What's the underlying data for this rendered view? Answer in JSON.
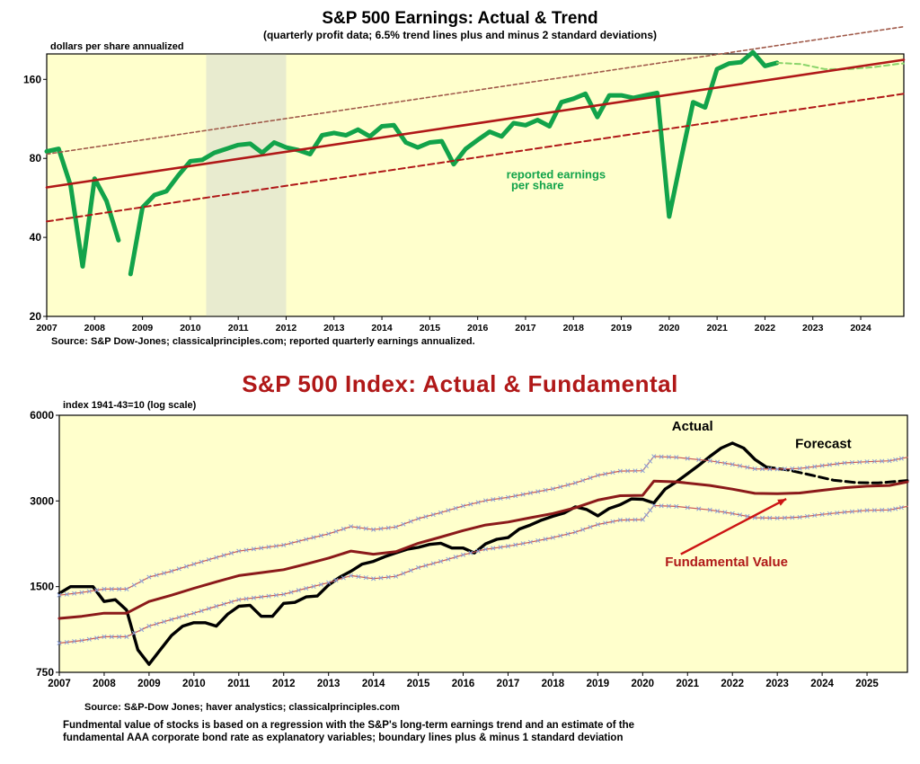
{
  "chart_data": [
    {
      "type": "line",
      "title": "S&P 500 Earnings: Actual & Trend",
      "subtitle": "(quarterly profit data; 6.5% trend lines plus and minus 2 standard deviations)",
      "ylabel": "dollars  per share annualized",
      "source": "Source: S&P Dow-Jones; classicalprinciples.com; reported quarterly earnings annualized.",
      "scale": "log",
      "xlim": [
        2007,
        2024.9
      ],
      "ylim": [
        20,
        200
      ],
      "yticks": [
        20,
        40,
        80,
        160
      ],
      "xticks": [
        "2007",
        "2008",
        "2009",
        "2010",
        "2011",
        "2012",
        "2013",
        "2014",
        "2015",
        "2016",
        "2017",
        "2018",
        "2019",
        "2020",
        "2021",
        "2022",
        "2023",
        "2024"
      ],
      "shaded_region": [
        2010.33,
        2012.0
      ],
      "grid": false,
      "annotations": [
        {
          "text": "reported earnings",
          "x": 2016.6,
          "y": 67
        },
        {
          "text": "per share",
          "x": 2016.7,
          "y": 61
        }
      ],
      "series": [
        {
          "name": "reported earnings per share",
          "color": "#12a34a",
          "x": [
            2007.0,
            2007.25,
            2007.5,
            2007.75,
            2008.0,
            2008.25,
            2008.5,
            2008.75
          ],
          "y": [
            85,
            87,
            63,
            31,
            67,
            55,
            39,
            null
          ]
        },
        {
          "color": "#12a34a",
          "x": [
            2008.75,
            2009.0,
            2009.25,
            2009.5,
            2009.75,
            2010.0,
            2010.25,
            2010.5,
            2010.75,
            2011.0,
            2011.25,
            2011.5,
            2011.75,
            2012.0,
            2012.25,
            2012.5,
            2012.75,
            2013.0,
            2013.25,
            2013.5,
            2013.75,
            2014.0,
            2014.25,
            2014.5,
            2014.75,
            2015.0,
            2015.25,
            2015.5,
            2015.75,
            2016.0,
            2016.25,
            2016.5,
            2016.75,
            2017.0,
            2017.25,
            2017.5,
            2017.75,
            2018.0,
            2018.25,
            2018.5,
            2018.75,
            2019.0,
            2019.25,
            2019.5,
            2019.75,
            2020.0,
            2020.25,
            2020.5,
            2020.75,
            2021.0,
            2021.25,
            2021.5,
            2021.75,
            2022.0,
            2022.25
          ],
          "y": [
            29,
            52,
            58,
            60,
            69,
            78,
            79,
            84,
            87,
            90,
            91,
            84,
            92,
            88,
            86,
            83,
            98,
            100,
            98,
            103,
            97,
            106,
            107,
            92,
            88,
            92,
            93,
            76,
            87,
            94,
            101,
            97,
            109,
            107,
            112,
            106,
            131,
            135,
            141,
            115,
            139,
            139,
            136,
            139,
            142,
            48,
            80,
            131,
            125,
            175,
            184,
            186,
            203,
            180,
            185
          ]
        },
        {
          "name": "forecast",
          "color": "#8ad46a",
          "dash": "6,4",
          "x": [
            2022.25,
            2022.75,
            2023.25,
            2023.75,
            2024.25,
            2024.75,
            2024.9
          ],
          "y": [
            185,
            183,
            175,
            175,
            178,
            183,
            184
          ]
        },
        {
          "name": "trend",
          "color": "#b01818",
          "x": [
            2007,
            2024.9
          ],
          "y": [
            62,
            190
          ]
        },
        {
          "name": "trend +2 sd",
          "color": "#a05a4a",
          "dash": "4,3",
          "x": [
            2007,
            2024.9
          ],
          "y": [
            83,
            254
          ]
        },
        {
          "name": "trend -2 sd",
          "color": "#b01818",
          "dash": "7,4",
          "x": [
            2007,
            2024.9
          ],
          "y": [
            46,
            141
          ]
        }
      ]
    },
    {
      "type": "line",
      "title": "S&P 500 Index: Actual & Fundamental",
      "ylabel": "index 1941-43=10 (log scale)",
      "source": "Source: S&P-Dow Jones; haver analystics; classicalprinciples.com",
      "scale": "log",
      "xlim": [
        2007,
        2025.9
      ],
      "ylim": [
        750,
        6000
      ],
      "yticks": [
        750,
        1500,
        3000,
        6000
      ],
      "xticks": [
        "2007",
        "2008",
        "2009",
        "2010",
        "2011",
        "2012",
        "2013",
        "2014",
        "2015",
        "2016",
        "2017",
        "2018",
        "2019",
        "2020",
        "2021",
        "2022",
        "2023",
        "2024",
        "2025"
      ],
      "grid": false,
      "annotations": [
        {
          "text": "Actual",
          "x": 2020.65,
          "y": 5300
        },
        {
          "text": "Forecast",
          "x": 2023.4,
          "y": 4600
        },
        {
          "text": "Fundamental Value",
          "x": 2020.5,
          "y": 1770
        }
      ],
      "series": [
        {
          "name": "Actual",
          "color": "#000000",
          "x": [
            2007.0,
            2007.25,
            2007.5,
            2007.75,
            2008.0,
            2008.25,
            2008.5,
            2008.75,
            2009.0,
            2009.25,
            2009.5,
            2009.75,
            2010.0,
            2010.25,
            2010.5,
            2010.75,
            2011.0,
            2011.25,
            2011.5,
            2011.75,
            2012.0,
            2012.25,
            2012.5,
            2012.75,
            2013.0,
            2013.25,
            2013.5,
            2013.75,
            2014.0,
            2014.25,
            2014.5,
            2014.75,
            2015.0,
            2015.25,
            2015.5,
            2015.75,
            2016.0,
            2016.25,
            2016.5,
            2016.75,
            2017.0,
            2017.25,
            2017.5,
            2017.75,
            2018.0,
            2018.25,
            2018.5,
            2018.75,
            2019.0,
            2019.25,
            2019.5,
            2019.75,
            2020.0,
            2020.25,
            2020.5,
            2020.75,
            2021.0,
            2021.25,
            2021.5,
            2021.75,
            2022.0,
            2022.25,
            2022.5,
            2022.75
          ],
          "y": [
            1420,
            1500,
            1500,
            1500,
            1330,
            1350,
            1240,
            900,
            800,
            900,
            1010,
            1090,
            1120,
            1120,
            1090,
            1200,
            1280,
            1290,
            1180,
            1180,
            1310,
            1320,
            1380,
            1390,
            1520,
            1620,
            1700,
            1800,
            1840,
            1910,
            1970,
            2030,
            2060,
            2110,
            2130,
            2050,
            2050,
            1970,
            2120,
            2200,
            2230,
            2390,
            2470,
            2570,
            2650,
            2720,
            2860,
            2800,
            2660,
            2820,
            2910,
            3050,
            3040,
            2950,
            3300,
            3500,
            3740,
            4000,
            4300,
            4600,
            4790,
            4600,
            4200,
            3950
          ]
        },
        {
          "name": "Forecast",
          "color": "#000000",
          "dash": "10,5",
          "x": [
            2022.75,
            2023.25,
            2023.75,
            2024.25,
            2024.75,
            2025.25,
            2025.9
          ],
          "y": [
            3950,
            3850,
            3700,
            3550,
            3480,
            3470,
            3540
          ]
        },
        {
          "name": "Fundamental Value",
          "color": "#8b1a1a",
          "x": [
            2007.0,
            2007.5,
            2008.0,
            2008.5,
            2009.0,
            2009.5,
            2010.0,
            2010.5,
            2011.0,
            2011.5,
            2012.0,
            2012.5,
            2013.0,
            2013.5,
            2014.0,
            2014.5,
            2015.0,
            2015.5,
            2016.0,
            2016.5,
            2017.0,
            2017.5,
            2018.0,
            2018.5,
            2019.0,
            2019.5,
            2020.0,
            2020.25,
            2020.75,
            2021.5,
            2022.0,
            2022.5,
            2023.0,
            2023.5,
            2024.0,
            2024.5,
            2025.0,
            2025.5,
            2025.9
          ],
          "y": [
            1160,
            1180,
            1210,
            1210,
            1330,
            1400,
            1480,
            1560,
            1640,
            1680,
            1720,
            1800,
            1890,
            2000,
            1950,
            1990,
            2130,
            2240,
            2360,
            2470,
            2530,
            2620,
            2710,
            2840,
            3020,
            3130,
            3140,
            3520,
            3500,
            3400,
            3300,
            3190,
            3180,
            3200,
            3270,
            3340,
            3380,
            3400,
            3500
          ]
        },
        {
          "name": "fundamental +1 sd",
          "color": "#c85a5a",
          "marker": "x",
          "marker_color": "#8aa0d8",
          "x": [
            2007.0,
            2007.5,
            2008.0,
            2008.5,
            2009.0,
            2009.5,
            2010.0,
            2010.5,
            2011.0,
            2011.5,
            2012.0,
            2012.5,
            2013.0,
            2013.5,
            2014.0,
            2014.5,
            2015.0,
            2015.5,
            2016.0,
            2016.5,
            2017.0,
            2017.5,
            2018.0,
            2018.5,
            2019.0,
            2019.5,
            2020.0,
            2020.25,
            2020.75,
            2021.5,
            2022.0,
            2022.5,
            2023.0,
            2023.5,
            2024.0,
            2024.5,
            2025.0,
            2025.5,
            2025.9
          ],
          "y": [
            1400,
            1430,
            1470,
            1470,
            1620,
            1700,
            1800,
            1900,
            2000,
            2050,
            2100,
            2200,
            2300,
            2440,
            2380,
            2430,
            2600,
            2730,
            2880,
            3010,
            3090,
            3200,
            3310,
            3470,
            3690,
            3820,
            3830,
            4300,
            4270,
            4150,
            4030,
            3890,
            3880,
            3900,
            3990,
            4080,
            4120,
            4150,
            4270
          ]
        },
        {
          "name": "fundamental -1 sd",
          "color": "#c85a5a",
          "marker": "x",
          "marker_color": "#8aa0d8",
          "x": [
            2007.0,
            2007.5,
            2008.0,
            2008.5,
            2009.0,
            2009.5,
            2010.0,
            2010.5,
            2011.0,
            2011.5,
            2012.0,
            2012.5,
            2013.0,
            2013.5,
            2014.0,
            2014.5,
            2015.0,
            2015.5,
            2016.0,
            2016.5,
            2017.0,
            2017.5,
            2018.0,
            2018.5,
            2019.0,
            2019.5,
            2020.0,
            2020.25,
            2020.75,
            2021.5,
            2022.0,
            2022.5,
            2023.0,
            2023.5,
            2024.0,
            2024.5,
            2025.0,
            2025.5,
            2025.9
          ],
          "y": [
            950,
            970,
            1000,
            1000,
            1090,
            1150,
            1210,
            1280,
            1350,
            1380,
            1410,
            1480,
            1550,
            1640,
            1600,
            1630,
            1750,
            1840,
            1940,
            2030,
            2080,
            2150,
            2230,
            2330,
            2480,
            2570,
            2580,
            2890,
            2870,
            2790,
            2710,
            2620,
            2610,
            2630,
            2690,
            2740,
            2780,
            2790,
            2870
          ]
        }
      ]
    }
  ],
  "footnote": [
    "Fundmental value of stocks is based on a regression with the S&P's long-term earnings trend and an estimate of the",
    "fundamental AAA  corporate bond rate as explanatory variables; boundary lines plus & minus 1 standard deviation"
  ]
}
